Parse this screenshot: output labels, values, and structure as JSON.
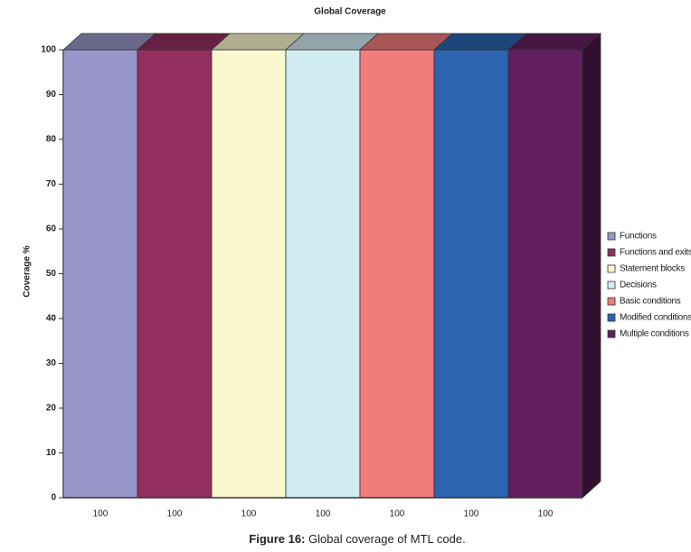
{
  "chart_data": {
    "type": "bar",
    "title": "Global Coverage",
    "ylabel": "Coverage %",
    "series": [
      {
        "name": "Functions",
        "color": "#9896c8",
        "values": [
          100
        ]
      },
      {
        "name": "Functions and exits",
        "color": "#922f5e",
        "values": [
          100
        ]
      },
      {
        "name": "Statement blocks",
        "color": "#fbf8cf",
        "values": [
          100
        ]
      },
      {
        "name": "Decisions",
        "color": "#d2ecf4",
        "values": [
          100
        ]
      },
      {
        "name": "Basic conditions",
        "color": "#f27b7b",
        "values": [
          100
        ]
      },
      {
        "name": "Modified conditions",
        "color": "#2c64b0",
        "values": [
          100
        ]
      },
      {
        "name": "Multiple conditions",
        "color": "#621f5e",
        "values": [
          100
        ]
      }
    ],
    "ylim": [
      0,
      100
    ],
    "yticks": [
      0,
      10,
      20,
      30,
      40,
      50,
      60,
      70,
      80,
      90,
      100
    ],
    "legend": "right"
  },
  "caption": {
    "label": "Figure 16:",
    "text": "Global coverage of MTL code."
  }
}
